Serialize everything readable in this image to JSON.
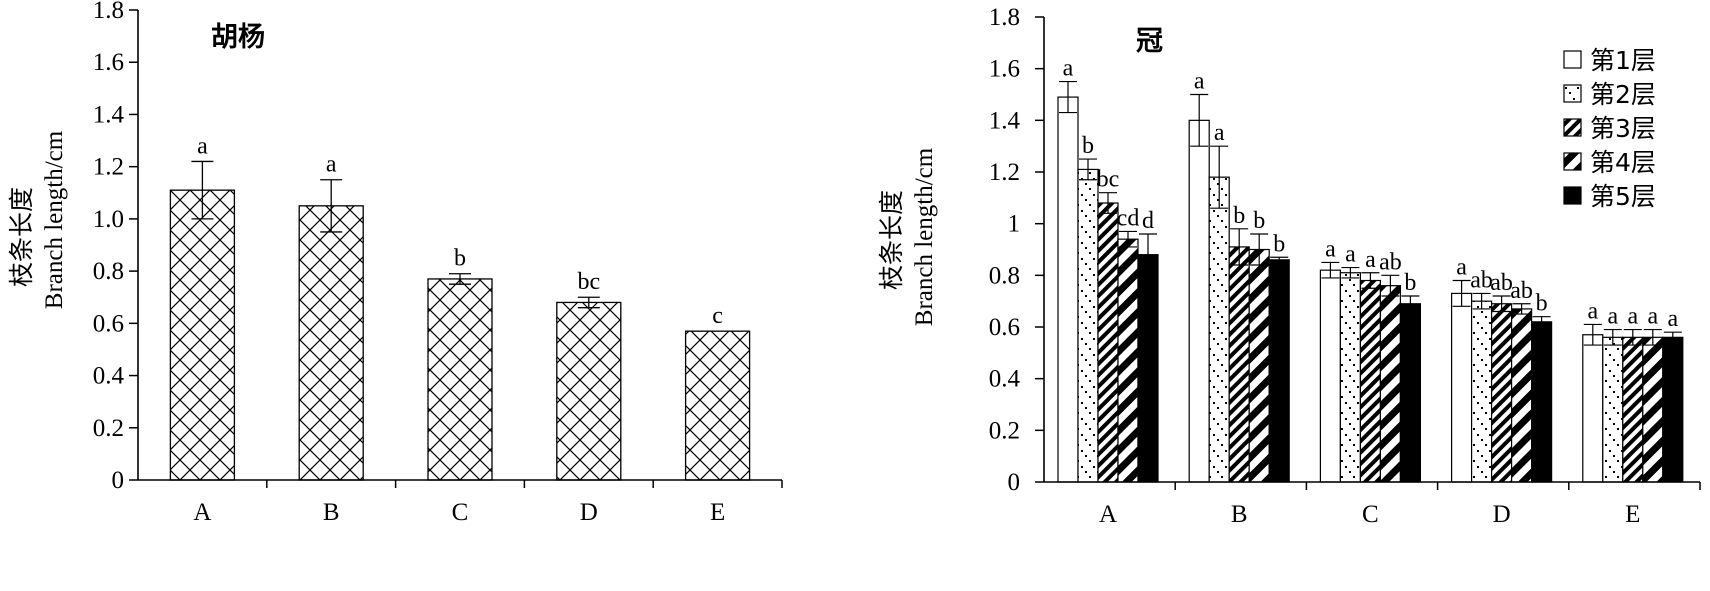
{
  "charts": {
    "left": {
      "title": "胡杨",
      "ylabel_cn": "枝条长度",
      "ylabel_en": "Branch length/cm"
    },
    "right": {
      "title": "冠",
      "ylabel_cn": "枝条长度",
      "ylabel_en": "Branch length/cm"
    }
  },
  "chart_data": [
    {
      "type": "bar",
      "title": "胡杨",
      "ylabel": "枝条长度 Branch length/cm",
      "xlabel": "",
      "categories": [
        "A",
        "B",
        "C",
        "D",
        "E"
      ],
      "values": [
        1.11,
        1.05,
        0.77,
        0.68,
        0.57
      ],
      "errors": [
        0.11,
        0.1,
        0.02,
        0.02,
        0.0
      ],
      "letters": [
        "a",
        "a",
        "b",
        "bc",
        "c"
      ],
      "ylim": [
        0,
        1.8
      ],
      "yticks": [
        "0",
        "0.2",
        "0.4",
        "0.6",
        "0.8",
        "1.0",
        "1.2",
        "1.4",
        "1.6",
        "1.8"
      ],
      "grid": false,
      "pattern": "crosshatch"
    },
    {
      "type": "bar",
      "title": "冠",
      "ylabel": "枝条长度 Branch length/cm",
      "xlabel": "",
      "categories": [
        "A",
        "B",
        "C",
        "D",
        "E"
      ],
      "ylim": [
        0,
        1.8
      ],
      "yticks": [
        "0",
        "0.2",
        "0.4",
        "0.6",
        "0.8",
        "1",
        "1.2",
        "1.4",
        "1.6",
        "1.8"
      ],
      "grid": false,
      "legend_position": "top-right",
      "series": [
        {
          "name": "第1层",
          "pattern": "white",
          "values": [
            1.49,
            1.4,
            0.82,
            0.73,
            0.57
          ],
          "errors": [
            0.06,
            0.1,
            0.03,
            0.05,
            0.04
          ],
          "letters": [
            "a",
            "a",
            "a",
            "a",
            "a"
          ]
        },
        {
          "name": "第2层",
          "pattern": "dots",
          "values": [
            1.21,
            1.18,
            0.81,
            0.7,
            0.56
          ],
          "errors": [
            0.04,
            0.12,
            0.02,
            0.03,
            0.03
          ],
          "letters": [
            "b",
            "a",
            "a",
            "ab",
            "a"
          ]
        },
        {
          "name": "第3层",
          "pattern": "dense-diagonal",
          "values": [
            1.08,
            0.91,
            0.78,
            0.69,
            0.56
          ],
          "errors": [
            0.04,
            0.07,
            0.03,
            0.03,
            0.03
          ],
          "letters": [
            "bc",
            "b",
            "a",
            "ab",
            "a"
          ]
        },
        {
          "name": "第4层",
          "pattern": "wide-diagonal",
          "values": [
            0.94,
            0.9,
            0.76,
            0.67,
            0.56
          ],
          "errors": [
            0.03,
            0.06,
            0.04,
            0.02,
            0.03
          ],
          "letters": [
            "cd",
            "b",
            "ab",
            "ab",
            "a"
          ]
        },
        {
          "name": "第5层",
          "pattern": "solid",
          "values": [
            0.88,
            0.86,
            0.69,
            0.62,
            0.56
          ],
          "errors": [
            0.08,
            0.01,
            0.03,
            0.02,
            0.02
          ],
          "letters": [
            "d",
            "b",
            "b",
            "b",
            "a"
          ]
        }
      ]
    }
  ]
}
